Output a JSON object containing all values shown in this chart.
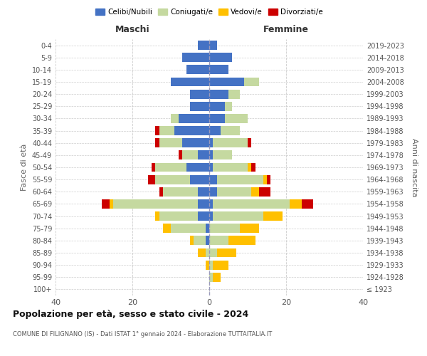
{
  "age_groups": [
    "100+",
    "95-99",
    "90-94",
    "85-89",
    "80-84",
    "75-79",
    "70-74",
    "65-69",
    "60-64",
    "55-59",
    "50-54",
    "45-49",
    "40-44",
    "35-39",
    "30-34",
    "25-29",
    "20-24",
    "15-19",
    "10-14",
    "5-9",
    "0-4"
  ],
  "birth_years": [
    "≤ 1923",
    "1924-1928",
    "1929-1933",
    "1934-1938",
    "1939-1943",
    "1944-1948",
    "1949-1953",
    "1954-1958",
    "1959-1963",
    "1964-1968",
    "1969-1973",
    "1974-1978",
    "1979-1983",
    "1984-1988",
    "1989-1993",
    "1994-1998",
    "1999-2003",
    "2004-2008",
    "2009-2013",
    "2014-2018",
    "2019-2023"
  ],
  "maschi": {
    "celibi": [
      0,
      0,
      0,
      0,
      1,
      1,
      3,
      3,
      3,
      5,
      6,
      3,
      7,
      9,
      8,
      5,
      5,
      10,
      6,
      7,
      3
    ],
    "coniugati": [
      0,
      0,
      0,
      1,
      3,
      9,
      10,
      22,
      9,
      9,
      8,
      4,
      6,
      4,
      2,
      0,
      0,
      0,
      0,
      0,
      0
    ],
    "vedovi": [
      0,
      0,
      1,
      2,
      1,
      2,
      1,
      1,
      0,
      0,
      0,
      0,
      0,
      0,
      0,
      0,
      0,
      0,
      0,
      0,
      0
    ],
    "divorziati": [
      0,
      0,
      0,
      0,
      0,
      0,
      0,
      2,
      1,
      2,
      1,
      1,
      1,
      1,
      0,
      0,
      0,
      0,
      0,
      0,
      0
    ]
  },
  "femmine": {
    "nubili": [
      0,
      0,
      0,
      0,
      0,
      0,
      1,
      1,
      2,
      2,
      1,
      1,
      1,
      3,
      4,
      4,
      5,
      9,
      5,
      6,
      2
    ],
    "coniugate": [
      0,
      1,
      1,
      2,
      5,
      8,
      13,
      20,
      9,
      12,
      9,
      5,
      9,
      5,
      6,
      2,
      3,
      4,
      0,
      0,
      0
    ],
    "vedove": [
      0,
      2,
      4,
      5,
      7,
      5,
      5,
      3,
      2,
      1,
      1,
      0,
      0,
      0,
      0,
      0,
      0,
      0,
      0,
      0,
      0
    ],
    "divorziate": [
      0,
      0,
      0,
      0,
      0,
      0,
      0,
      3,
      3,
      1,
      1,
      0,
      1,
      0,
      0,
      0,
      0,
      0,
      0,
      0,
      0
    ]
  },
  "colors": {
    "celibi": "#4472c4",
    "coniugati": "#c5d9a0",
    "vedovi": "#ffc000",
    "divorziati": "#cc0000"
  },
  "xlim": [
    -40,
    40
  ],
  "xticks": [
    -40,
    -20,
    0,
    20,
    40
  ],
  "xticklabels": [
    "40",
    "20",
    "0",
    "20",
    "40"
  ],
  "title": "Popolazione per età, sesso e stato civile - 2024",
  "subtitle": "COMUNE DI FILIGNANO (IS) - Dati ISTAT 1° gennaio 2024 - Elaborazione TUTTAITALIA.IT",
  "ylabel_left": "Fasce di età",
  "ylabel_right": "Anni di nascita",
  "label_maschi": "Maschi",
  "label_femmine": "Femmine",
  "legend_labels": [
    "Celibi/Nubili",
    "Coniugati/e",
    "Vedovi/e",
    "Divorziati/e"
  ],
  "background_color": "#ffffff",
  "grid_color": "#cccccc"
}
